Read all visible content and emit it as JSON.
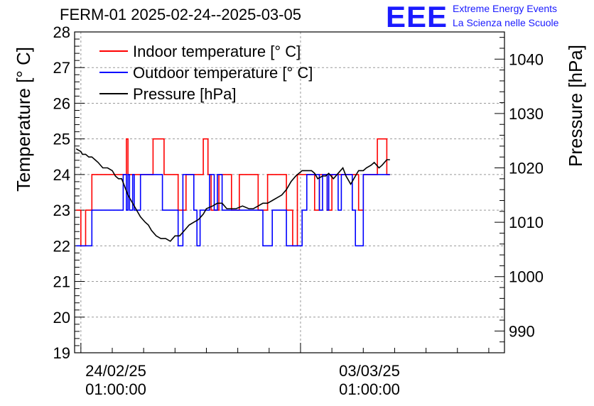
{
  "title": "FERM-01 2025-02-24--2025-03-05",
  "logo": {
    "mark": "EEE",
    "line1": "Extreme Energy Events",
    "line2": "La Scienza nelle Scuole",
    "color": "#1a1aff"
  },
  "chart_data": {
    "type": "line",
    "title": "FERM-01 2025-02-24--2025-03-05",
    "ylabel": "Temperature [° C]",
    "y2label": "Pressure [hPa]",
    "ylim": [
      19,
      28
    ],
    "y2lim": [
      986,
      1045
    ],
    "yticks": [
      19,
      20,
      21,
      22,
      23,
      24,
      25,
      26,
      27,
      28
    ],
    "y2ticks": [
      990,
      1000,
      1010,
      1020,
      1030,
      1040
    ],
    "xlim_days": [
      -0.2,
      13.5
    ],
    "xticks": [
      {
        "date": "24/02/25",
        "time": "01:00:00",
        "day": 0
      },
      {
        "date": "03/03/25",
        "time": "01:00:00",
        "day": 7
      }
    ],
    "grid": true,
    "legend_position": "top-left",
    "series": [
      {
        "name": "Indoor temperature [° C]",
        "color": "#ff0000",
        "axis": "left",
        "step": true,
        "x": [
          -0.15,
          0.0,
          0.15,
          0.25,
          0.35,
          0.4,
          0.55,
          1.45,
          1.5,
          1.55,
          1.9,
          2.1,
          2.3,
          2.6,
          2.65,
          2.9,
          3.1,
          3.3,
          3.35,
          3.45,
          3.9,
          4.05,
          4.15,
          4.25,
          4.4,
          4.7,
          4.8,
          4.95,
          5.05,
          5.2,
          5.25,
          5.45,
          5.65,
          5.75,
          5.95,
          6.05,
          6.35,
          6.55,
          6.75,
          6.9,
          7.05,
          7.25,
          7.45,
          7.6,
          7.7,
          7.85,
          8.0,
          8.15,
          8.3,
          8.5,
          8.7,
          8.85,
          9.0,
          9.2,
          9.45,
          9.75,
          9.85
        ],
        "y": [
          23,
          22,
          23,
          23,
          24,
          24,
          24,
          25,
          24,
          24,
          24,
          24,
          25,
          25,
          24,
          24,
          23,
          23,
          24,
          24,
          25,
          24,
          23,
          23,
          24,
          24,
          23,
          23,
          24,
          24,
          24,
          24,
          23,
          23,
          24,
          24,
          24,
          23,
          22,
          24,
          24,
          24,
          23,
          24,
          24,
          23,
          24,
          24,
          24,
          24,
          24,
          23,
          24,
          24,
          25,
          24,
          24
        ]
      },
      {
        "name": "Outdoor temperature [° C]",
        "color": "#0000ff",
        "axis": "left",
        "step": true,
        "x": [
          -0.15,
          0.35,
          0.45,
          1.35,
          1.45,
          1.5,
          1.55,
          1.65,
          1.7,
          1.9,
          1.95,
          2.3,
          2.6,
          2.7,
          3.1,
          3.25,
          3.3,
          3.6,
          3.7,
          3.8,
          4.1,
          4.25,
          4.35,
          4.5,
          4.8,
          4.95,
          5.25,
          5.4,
          5.8,
          6.1,
          6.25,
          6.5,
          6.55,
          6.85,
          7.05,
          7.2,
          7.25,
          7.5,
          7.6,
          7.7,
          7.85,
          7.9,
          8.05,
          8.2,
          8.3,
          8.45,
          8.55,
          8.65,
          8.75,
          9.0,
          9.2,
          9.45,
          9.75,
          9.85
        ],
        "y": [
          22,
          23,
          23,
          24,
          23,
          24,
          23,
          24,
          23,
          24,
          24,
          24,
          23,
          23,
          22,
          24,
          24,
          23,
          22,
          23,
          24,
          23,
          24,
          23,
          23,
          23,
          23,
          23,
          22,
          23,
          23,
          23,
          22,
          22,
          23,
          24,
          24,
          24,
          23,
          24,
          23,
          24,
          24,
          23,
          24,
          24,
          24,
          23,
          22,
          24,
          24,
          24,
          24,
          24
        ]
      },
      {
        "name": "Pressure [hPa]",
        "color": "#000000",
        "axis": "right",
        "step": false,
        "x": [
          -0.15,
          0.0,
          0.05,
          0.15,
          0.25,
          0.35,
          0.45,
          0.55,
          0.7,
          0.85,
          1.0,
          1.1,
          1.2,
          1.3,
          1.4,
          1.5,
          1.6,
          1.75,
          1.9,
          2.05,
          2.15,
          2.25,
          2.4,
          2.55,
          2.7,
          2.85,
          3.0,
          3.15,
          3.3,
          3.45,
          3.6,
          3.75,
          3.9,
          4.0,
          4.2,
          4.35,
          4.5,
          4.65,
          4.8,
          4.95,
          5.15,
          5.35,
          5.5,
          5.65,
          5.8,
          5.95,
          6.1,
          6.25,
          6.4,
          6.55,
          6.7,
          6.85,
          6.95,
          7.05,
          7.2,
          7.35,
          7.45,
          7.55,
          7.7,
          7.8,
          7.9,
          8.05,
          8.2,
          8.35,
          8.45,
          8.6,
          8.75,
          8.85,
          9.0,
          9.1,
          9.25,
          9.35,
          9.5,
          9.6,
          9.75,
          9.85
        ],
        "y": [
          1023.5,
          1023,
          1022.5,
          1022.5,
          1022,
          1022,
          1021.5,
          1021,
          1020,
          1020,
          1019.5,
          1018.5,
          1018,
          1018,
          1016.5,
          1015,
          1014,
          1012.5,
          1011,
          1010,
          1009.5,
          1008.5,
          1007.5,
          1007,
          1007,
          1006.5,
          1007.5,
          1007.5,
          1008.5,
          1009.5,
          1010,
          1010.5,
          1011.5,
          1012.5,
          1013,
          1013.5,
          1013.5,
          1012.5,
          1012.5,
          1012.5,
          1013,
          1012.5,
          1012.5,
          1013,
          1013.5,
          1013.5,
          1014,
          1014.5,
          1015,
          1016,
          1017.5,
          1018.5,
          1019,
          1019.5,
          1019.5,
          1019.5,
          1019,
          1018,
          1018.5,
          1018.5,
          1019,
          1018,
          1019,
          1020,
          1018.5,
          1017,
          1018.5,
          1019.5,
          1019.5,
          1020,
          1020.5,
          1021,
          1020,
          1020.5,
          1021.5,
          1021.5
        ]
      }
    ]
  }
}
